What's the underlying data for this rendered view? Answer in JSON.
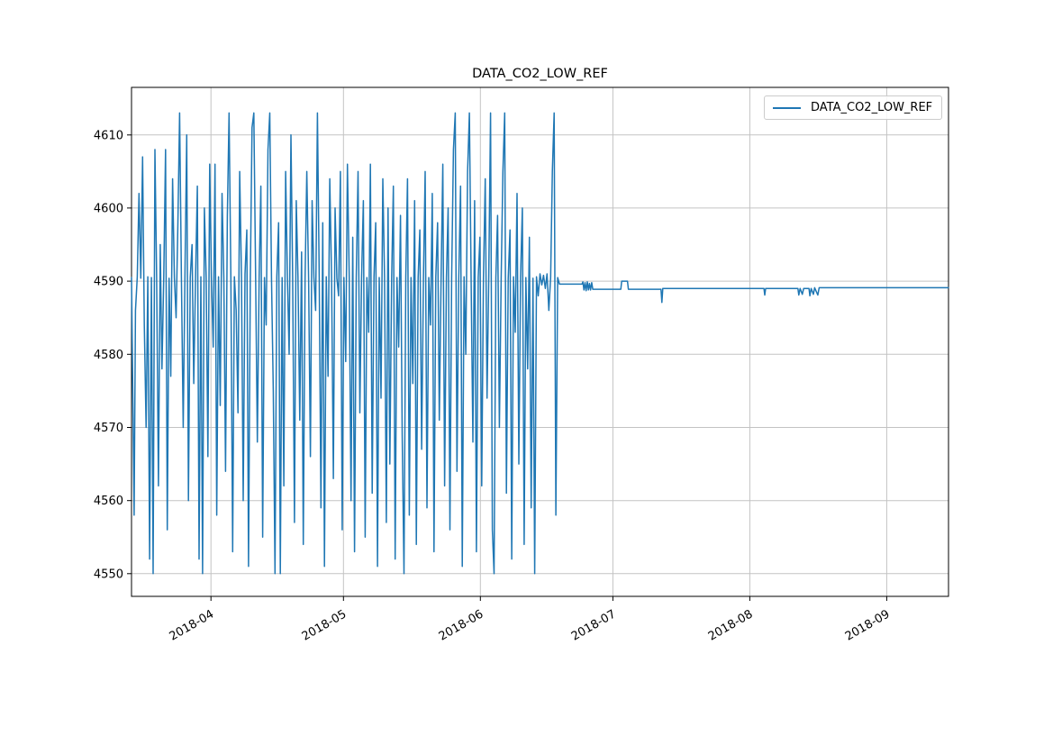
{
  "figure": {
    "background": "#ffffff"
  },
  "chart_data": {
    "type": "line",
    "title": "DATA_CO2_LOW_REF",
    "legend": {
      "label": "DATA_CO2_LOW_REF",
      "position": "upper right"
    },
    "line_color": "#1f77b4",
    "grid": true,
    "grid_color": "#c3c3c3",
    "spine_color": "#000000",
    "xlabel": "",
    "ylabel": "",
    "x_axis": {
      "unit": "date",
      "axis_start_date": "2018-03-14",
      "axis_end_date": "2018-09-15",
      "xlim_days": [
        0,
        185
      ],
      "ticks": [
        {
          "label": "2018-04",
          "day": 18
        },
        {
          "label": "2018-05",
          "day": 48
        },
        {
          "label": "2018-06",
          "day": 79
        },
        {
          "label": "2018-07",
          "day": 109
        },
        {
          "label": "2018-08",
          "day": 140
        },
        {
          "label": "2018-09",
          "day": 171
        }
      ],
      "tick_rotation_deg": 30
    },
    "y_axis": {
      "ticks": [
        4550,
        4560,
        4570,
        4580,
        4590,
        4600,
        4610
      ],
      "ylim": [
        4546.9,
        4616.5
      ]
    },
    "data_summary": {
      "noisy_period": "2018-03-14 to 2018-06-19, values oscillate 4550-4613 around baseline ~4590.5",
      "flat_period": "2018-06-19 to 2018-09-15, steady ~4589 with small steps (4590 pulse early July), a dip to ~4587 mid-July and brief dips to ~4588 in mid-August",
      "min": 4550,
      "max": 4613
    },
    "series": [
      {
        "name": "DATA_CO2_LOW_REF",
        "points": [
          [
            0,
            4590.5
          ],
          [
            0.3,
            4574
          ],
          [
            0.6,
            4558
          ],
          [
            0.9,
            4586
          ],
          [
            1.3,
            4590.6
          ],
          [
            1.7,
            4602
          ],
          [
            2.1,
            4590.4
          ],
          [
            2.5,
            4607
          ],
          [
            2.9,
            4584
          ],
          [
            3.3,
            4570
          ],
          [
            3.7,
            4590.6
          ],
          [
            4.1,
            4552
          ],
          [
            4.5,
            4590.5
          ],
          [
            4.9,
            4550
          ],
          [
            5.3,
            4608
          ],
          [
            5.7,
            4590.5
          ],
          [
            6.1,
            4562
          ],
          [
            6.5,
            4595
          ],
          [
            6.9,
            4578
          ],
          [
            7.3,
            4590.6
          ],
          [
            7.7,
            4608
          ],
          [
            8.1,
            4556
          ],
          [
            8.5,
            4590.4
          ],
          [
            8.9,
            4577
          ],
          [
            9.3,
            4604
          ],
          [
            9.7,
            4590.5
          ],
          [
            10.1,
            4585
          ],
          [
            10.5,
            4598
          ],
          [
            10.9,
            4613
          ],
          [
            11.3,
            4590.5
          ],
          [
            11.7,
            4570
          ],
          [
            12.1,
            4590.6
          ],
          [
            12.5,
            4610
          ],
          [
            12.9,
            4560
          ],
          [
            13.3,
            4590.5
          ],
          [
            13.7,
            4595
          ],
          [
            14.1,
            4576
          ],
          [
            14.5,
            4590.5
          ],
          [
            14.9,
            4603
          ],
          [
            15.3,
            4552
          ],
          [
            15.7,
            4590.6
          ],
          [
            16.1,
            4550
          ],
          [
            16.5,
            4600
          ],
          [
            16.9,
            4590.5
          ],
          [
            17.3,
            4566
          ],
          [
            17.7,
            4606
          ],
          [
            18.1,
            4590.5
          ],
          [
            18.5,
            4581
          ],
          [
            18.9,
            4606
          ],
          [
            19.3,
            4558
          ],
          [
            19.7,
            4590.6
          ],
          [
            20.1,
            4573
          ],
          [
            20.5,
            4602
          ],
          [
            20.9,
            4590.4
          ],
          [
            21.3,
            4564
          ],
          [
            21.7,
            4599
          ],
          [
            22.1,
            4613
          ],
          [
            22.5,
            4590.5
          ],
          [
            22.9,
            4553
          ],
          [
            23.3,
            4590.6
          ],
          [
            23.7,
            4586
          ],
          [
            24.1,
            4572
          ],
          [
            24.5,
            4605
          ],
          [
            24.9,
            4590.5
          ],
          [
            25.3,
            4560
          ],
          [
            25.7,
            4591
          ],
          [
            26.1,
            4597
          ],
          [
            26.5,
            4551
          ],
          [
            26.9,
            4590.5
          ],
          [
            27.3,
            4611
          ],
          [
            27.7,
            4613
          ],
          [
            28.1,
            4590.4
          ],
          [
            28.5,
            4568
          ],
          [
            28.9,
            4590.6
          ],
          [
            29.3,
            4603
          ],
          [
            29.7,
            4555
          ],
          [
            30.1,
            4590.5
          ],
          [
            30.5,
            4584
          ],
          [
            30.9,
            4608
          ],
          [
            31.3,
            4613
          ],
          [
            31.7,
            4590.5
          ],
          [
            32.1,
            4575
          ],
          [
            32.5,
            4550
          ],
          [
            32.9,
            4590.6
          ],
          [
            33.3,
            4598
          ],
          [
            33.7,
            4550
          ],
          [
            34.1,
            4590.5
          ],
          [
            34.5,
            4562
          ],
          [
            34.9,
            4605
          ],
          [
            35.3,
            4590.4
          ],
          [
            35.7,
            4580
          ],
          [
            36.1,
            4610
          ],
          [
            36.5,
            4590.5
          ],
          [
            36.9,
            4557
          ],
          [
            37.3,
            4601
          ],
          [
            37.7,
            4590.6
          ],
          [
            38.1,
            4571
          ],
          [
            38.5,
            4594
          ],
          [
            38.9,
            4554
          ],
          [
            39.3,
            4590.5
          ],
          [
            39.7,
            4605
          ],
          [
            40.1,
            4590.4
          ],
          [
            40.5,
            4566
          ],
          [
            40.9,
            4601
          ],
          [
            41.3,
            4590.5
          ],
          [
            41.7,
            4586
          ],
          [
            42.1,
            4613
          ],
          [
            42.5,
            4590.5
          ],
          [
            42.9,
            4559
          ],
          [
            43.3,
            4598
          ],
          [
            43.7,
            4551
          ],
          [
            44.1,
            4590.6
          ],
          [
            44.5,
            4577
          ],
          [
            44.9,
            4604
          ],
          [
            45.3,
            4590.5
          ],
          [
            45.7,
            4563
          ],
          [
            46.1,
            4600
          ],
          [
            46.5,
            4590.4
          ],
          [
            46.9,
            4588
          ],
          [
            47.3,
            4605
          ],
          [
            47.7,
            4556
          ],
          [
            48.1,
            4590.5
          ],
          [
            48.5,
            4579
          ],
          [
            48.9,
            4606
          ],
          [
            49.3,
            4590.6
          ],
          [
            49.7,
            4560
          ],
          [
            50.1,
            4596
          ],
          [
            50.5,
            4553
          ],
          [
            50.9,
            4590.5
          ],
          [
            51.3,
            4605
          ],
          [
            51.7,
            4572
          ],
          [
            52.1,
            4590.4
          ],
          [
            52.5,
            4601
          ],
          [
            52.9,
            4555
          ],
          [
            53.3,
            4590.5
          ],
          [
            53.7,
            4583
          ],
          [
            54.1,
            4606
          ],
          [
            54.5,
            4561
          ],
          [
            54.9,
            4590.6
          ],
          [
            55.3,
            4598
          ],
          [
            55.7,
            4551
          ],
          [
            56.1,
            4590.5
          ],
          [
            56.5,
            4574
          ],
          [
            56.9,
            4604
          ],
          [
            57.3,
            4590.5
          ],
          [
            57.7,
            4557
          ],
          [
            58.1,
            4600
          ],
          [
            58.5,
            4565
          ],
          [
            58.9,
            4590.4
          ],
          [
            59.3,
            4603
          ],
          [
            59.7,
            4552
          ],
          [
            60.1,
            4590.5
          ],
          [
            60.5,
            4581
          ],
          [
            60.9,
            4599
          ],
          [
            61.3,
            4569
          ],
          [
            61.7,
            4550
          ],
          [
            62.1,
            4590.6
          ],
          [
            62.5,
            4604
          ],
          [
            62.9,
            4558
          ],
          [
            63.3,
            4590.5
          ],
          [
            63.7,
            4576
          ],
          [
            64.1,
            4601
          ],
          [
            64.5,
            4554
          ],
          [
            64.9,
            4590.5
          ],
          [
            65.3,
            4597
          ],
          [
            65.7,
            4567
          ],
          [
            66.1,
            4590.4
          ],
          [
            66.5,
            4605
          ],
          [
            66.9,
            4559
          ],
          [
            67.3,
            4590.5
          ],
          [
            67.7,
            4584
          ],
          [
            68.1,
            4602
          ],
          [
            68.5,
            4553
          ],
          [
            68.9,
            4590.6
          ],
          [
            69.3,
            4598
          ],
          [
            69.7,
            4571
          ],
          [
            70.1,
            4590.5
          ],
          [
            70.5,
            4606
          ],
          [
            70.9,
            4562
          ],
          [
            71.3,
            4590.5
          ],
          [
            71.7,
            4600
          ],
          [
            72.1,
            4556
          ],
          [
            72.5,
            4590.4
          ],
          [
            72.9,
            4608
          ],
          [
            73.3,
            4613
          ],
          [
            73.7,
            4564
          ],
          [
            74.1,
            4590.5
          ],
          [
            74.5,
            4603
          ],
          [
            74.9,
            4551
          ],
          [
            75.3,
            4590.6
          ],
          [
            75.7,
            4580
          ],
          [
            76.1,
            4605
          ],
          [
            76.5,
            4613
          ],
          [
            76.9,
            4590.5
          ],
          [
            77.3,
            4568
          ],
          [
            77.7,
            4601
          ],
          [
            78.1,
            4553
          ],
          [
            78.5,
            4590.5
          ],
          [
            78.9,
            4596
          ],
          [
            79.3,
            4562
          ],
          [
            79.7,
            4590.4
          ],
          [
            80.1,
            4604
          ],
          [
            80.5,
            4574
          ],
          [
            80.9,
            4590.6
          ],
          [
            81.3,
            4613
          ],
          [
            81.7,
            4556
          ],
          [
            82.1,
            4550
          ],
          [
            82.5,
            4590.5
          ],
          [
            82.9,
            4599
          ],
          [
            83.3,
            4570
          ],
          [
            83.7,
            4590.5
          ],
          [
            84.1,
            4605
          ],
          [
            84.5,
            4613
          ],
          [
            84.9,
            4561
          ],
          [
            85.3,
            4590.4
          ],
          [
            85.7,
            4597
          ],
          [
            86.1,
            4552
          ],
          [
            86.5,
            4590.6
          ],
          [
            86.9,
            4583
          ],
          [
            87.3,
            4602
          ],
          [
            87.7,
            4565
          ],
          [
            88.1,
            4590.5
          ],
          [
            88.5,
            4600
          ],
          [
            88.9,
            4554
          ],
          [
            89.3,
            4590.5
          ],
          [
            89.7,
            4578
          ],
          [
            90.1,
            4596
          ],
          [
            90.5,
            4559
          ],
          [
            90.9,
            4590.4
          ],
          [
            91.3,
            4550
          ],
          [
            91.7,
            4590.6
          ],
          [
            92.1,
            4588
          ],
          [
            92.5,
            4591
          ],
          [
            92.9,
            4589.5
          ],
          [
            93.3,
            4590.8
          ],
          [
            93.7,
            4589
          ],
          [
            94.1,
            4591
          ],
          [
            94.5,
            4586
          ],
          [
            94.9,
            4590.5
          ],
          [
            95.3,
            4605
          ],
          [
            95.7,
            4613
          ],
          [
            96.1,
            4558
          ],
          [
            96.5,
            4590.5
          ],
          [
            96.9,
            4589.6
          ],
          [
            97.3,
            4589.6
          ],
          [
            102,
            4589.6
          ],
          [
            102.2,
            4589.9
          ],
          [
            102.45,
            4588.8
          ],
          [
            102.7,
            4589.8
          ],
          [
            102.95,
            4588.7
          ],
          [
            103.2,
            4589.9
          ],
          [
            103.45,
            4588.8
          ],
          [
            103.7,
            4589.7
          ],
          [
            103.95,
            4588.8
          ],
          [
            104.2,
            4589.8
          ],
          [
            104.45,
            4588.9
          ],
          [
            104.7,
            4588.9
          ],
          [
            110.8,
            4588.9
          ],
          [
            111,
            4590
          ],
          [
            112.3,
            4590
          ],
          [
            112.5,
            4588.9
          ],
          [
            119.9,
            4588.9
          ],
          [
            120.1,
            4587.1
          ],
          [
            120.3,
            4589
          ],
          [
            143.2,
            4589
          ],
          [
            143.4,
            4588.1
          ],
          [
            143.6,
            4589
          ],
          [
            150.9,
            4589
          ],
          [
            151.1,
            4588.1
          ],
          [
            151.4,
            4589
          ],
          [
            151.9,
            4588.2
          ],
          [
            152.2,
            4589
          ],
          [
            153.4,
            4589
          ],
          [
            153.6,
            4588
          ],
          [
            153.9,
            4589
          ],
          [
            154.4,
            4588.2
          ],
          [
            154.7,
            4589.1
          ],
          [
            155.4,
            4588.1
          ],
          [
            155.7,
            4589.1
          ],
          [
            185,
            4589.1
          ]
        ]
      }
    ]
  }
}
